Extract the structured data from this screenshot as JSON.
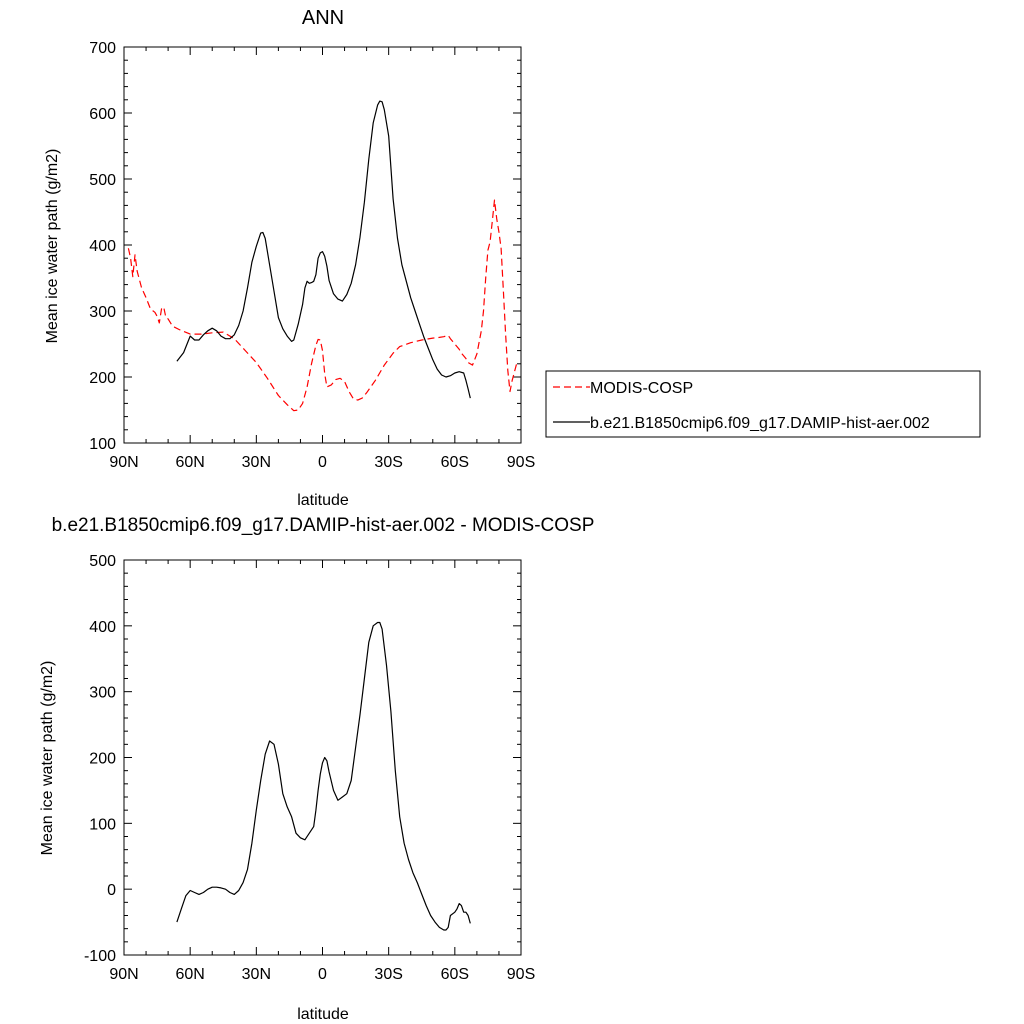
{
  "chart_data": [
    {
      "type": "line",
      "title": "ANN",
      "xlabel": "latitude",
      "ylabel": "Mean ice water path (g/m2)",
      "xlim": [
        90,
        -90
      ],
      "ylim": [
        100,
        700
      ],
      "xticks": [
        {
          "value": 90,
          "label": "90N"
        },
        {
          "value": 60,
          "label": "60N"
        },
        {
          "value": 30,
          "label": "30N"
        },
        {
          "value": 0,
          "label": "0"
        },
        {
          "value": -30,
          "label": "30S"
        },
        {
          "value": -60,
          "label": "60S"
        },
        {
          "value": -90,
          "label": "90S"
        }
      ],
      "yticks": [
        100,
        200,
        300,
        400,
        500,
        600,
        700
      ],
      "legend": "right",
      "series": [
        {
          "name": "MODIS-COSP",
          "color": "#ff0000",
          "dash": "dashed",
          "points": [
            [
              88,
              395
            ],
            [
              87,
              380
            ],
            [
              86,
              352
            ],
            [
              85,
              385
            ],
            [
              84,
              360
            ],
            [
              82,
              335
            ],
            [
              80,
              320
            ],
            [
              78,
              303
            ],
            [
              76,
              298
            ],
            [
              75,
              292
            ],
            [
              74,
              282
            ],
            [
              73,
              303
            ],
            [
              72,
              306
            ],
            [
              71,
              290
            ],
            [
              70,
              288
            ],
            [
              68,
              277
            ],
            [
              65,
              272
            ],
            [
              60,
              265
            ],
            [
              55,
              265
            ],
            [
              50,
              267
            ],
            [
              45,
              268
            ],
            [
              40,
              258
            ],
            [
              35,
              240
            ],
            [
              30,
              222
            ],
            [
              25,
              198
            ],
            [
              20,
              172
            ],
            [
              16,
              158
            ],
            [
              13,
              149
            ],
            [
              11,
              150
            ],
            [
              9,
              160
            ],
            [
              7,
              185
            ],
            [
              5,
              220
            ],
            [
              3,
              248
            ],
            [
              2,
              257
            ],
            [
              1,
              256
            ],
            [
              0,
              240
            ],
            [
              -1,
              205
            ],
            [
              -2,
              185
            ],
            [
              -4,
              188
            ],
            [
              -6,
              196
            ],
            [
              -8,
              198
            ],
            [
              -10,
              193
            ],
            [
              -12,
              178
            ],
            [
              -14,
              167
            ],
            [
              -16,
              165
            ],
            [
              -18,
              168
            ],
            [
              -20,
              176
            ],
            [
              -24,
              195
            ],
            [
              -28,
              218
            ],
            [
              -32,
              236
            ],
            [
              -35,
              246
            ],
            [
              -40,
              252
            ],
            [
              -45,
              256
            ],
            [
              -50,
              259
            ],
            [
              -53,
              260
            ],
            [
              -55,
              261
            ],
            [
              -57,
              263
            ],
            [
              -58,
              258
            ],
            [
              -60,
              250
            ],
            [
              -62,
              242
            ],
            [
              -63,
              236
            ],
            [
              -64,
              232
            ],
            [
              -65,
              228
            ],
            [
              -66,
              222
            ],
            [
              -68,
              218
            ],
            [
              -70,
              235
            ],
            [
              -72,
              270
            ],
            [
              -73,
              300
            ],
            [
              -74,
              350
            ],
            [
              -75,
              392
            ],
            [
              -76,
              405
            ],
            [
              -77,
              436
            ],
            [
              -78,
              468
            ],
            [
              -79,
              440
            ],
            [
              -80,
              420
            ],
            [
              -81,
              395
            ],
            [
              -82,
              330
            ],
            [
              -83,
              265
            ],
            [
              -84,
              210
            ],
            [
              -85,
              178
            ],
            [
              -86,
              195
            ],
            [
              -88,
              220
            ]
          ]
        },
        {
          "name": "b.e21.B1850cmip6.f09_g17.DAMIP-hist-aer.002",
          "color": "#000000",
          "dash": "solid",
          "points": [
            [
              66,
              224
            ],
            [
              63,
              237
            ],
            [
              60,
              262
            ],
            [
              58,
              256
            ],
            [
              56,
              256
            ],
            [
              54,
              264
            ],
            [
              52,
              270
            ],
            [
              50,
              274
            ],
            [
              48,
              270
            ],
            [
              46,
              262
            ],
            [
              44,
              258
            ],
            [
              42,
              258
            ],
            [
              40,
              264
            ],
            [
              38,
              278
            ],
            [
              36,
              300
            ],
            [
              34,
              335
            ],
            [
              32,
              374
            ],
            [
              30,
              398
            ],
            [
              28,
              418
            ],
            [
              27,
              419
            ],
            [
              26,
              410
            ],
            [
              24,
              370
            ],
            [
              22,
              330
            ],
            [
              20,
              290
            ],
            [
              18,
              273
            ],
            [
              16,
              262
            ],
            [
              14,
              254
            ],
            [
              13,
              256
            ],
            [
              11,
              280
            ],
            [
              9,
              310
            ],
            [
              8,
              335
            ],
            [
              7,
              345
            ],
            [
              6,
              342
            ],
            [
              5,
              343
            ],
            [
              4,
              345
            ],
            [
              3,
              355
            ],
            [
              2,
              380
            ],
            [
              1,
              388
            ],
            [
              0,
              390
            ],
            [
              -1,
              383
            ],
            [
              -2,
              368
            ],
            [
              -3,
              346
            ],
            [
              -5,
              326
            ],
            [
              -7,
              318
            ],
            [
              -9,
              315
            ],
            [
              -11,
              325
            ],
            [
              -13,
              342
            ],
            [
              -15,
              370
            ],
            [
              -17,
              412
            ],
            [
              -19,
              465
            ],
            [
              -21,
              530
            ],
            [
              -23,
              585
            ],
            [
              -25,
              612
            ],
            [
              -26,
              618
            ],
            [
              -27,
              617
            ],
            [
              -28,
              605
            ],
            [
              -30,
              565
            ],
            [
              -32,
              470
            ],
            [
              -34,
              410
            ],
            [
              -36,
              370
            ],
            [
              -38,
              345
            ],
            [
              -40,
              320
            ],
            [
              -42,
              300
            ],
            [
              -44,
              280
            ],
            [
              -46,
              260
            ],
            [
              -48,
              243
            ],
            [
              -50,
              226
            ],
            [
              -52,
              212
            ],
            [
              -54,
              203
            ],
            [
              -56,
              200
            ],
            [
              -58,
              202
            ],
            [
              -60,
              206
            ],
            [
              -62,
              208
            ],
            [
              -64,
              206
            ],
            [
              -65,
              195
            ],
            [
              -66,
              182
            ],
            [
              -67,
              168
            ]
          ]
        }
      ]
    },
    {
      "type": "line",
      "title": "b.e21.B1850cmip6.f09_g17.DAMIP-hist-aer.002 - MODIS-COSP",
      "xlabel": "latitude",
      "ylabel": "Mean ice water path (g/m2)",
      "xlim": [
        90,
        -90
      ],
      "ylim": [
        -100,
        500
      ],
      "xticks": [
        {
          "value": 90,
          "label": "90N"
        },
        {
          "value": 60,
          "label": "60N"
        },
        {
          "value": 30,
          "label": "30N"
        },
        {
          "value": 0,
          "label": "0"
        },
        {
          "value": -30,
          "label": "30S"
        },
        {
          "value": -60,
          "label": "60S"
        },
        {
          "value": -90,
          "label": "90S"
        }
      ],
      "yticks": [
        -100,
        0,
        100,
        200,
        300,
        400,
        500
      ],
      "series": [
        {
          "color": "#000000",
          "dash": "solid",
          "points": [
            [
              66,
              -50
            ],
            [
              64,
              -30
            ],
            [
              62,
              -10
            ],
            [
              60,
              -2
            ],
            [
              58,
              -5
            ],
            [
              56,
              -8
            ],
            [
              54,
              -5
            ],
            [
              52,
              0
            ],
            [
              50,
              3
            ],
            [
              48,
              3
            ],
            [
              46,
              2
            ],
            [
              44,
              0
            ],
            [
              42,
              -5
            ],
            [
              40,
              -8
            ],
            [
              38,
              -2
            ],
            [
              36,
              10
            ],
            [
              34,
              30
            ],
            [
              32,
              70
            ],
            [
              30,
              120
            ],
            [
              28,
              165
            ],
            [
              26,
              205
            ],
            [
              24,
              225
            ],
            [
              22,
              220
            ],
            [
              20,
              190
            ],
            [
              18,
              145
            ],
            [
              16,
              125
            ],
            [
              14,
              110
            ],
            [
              12,
              85
            ],
            [
              10,
              78
            ],
            [
              8,
              75
            ],
            [
              6,
              85
            ],
            [
              4,
              95
            ],
            [
              3,
              120
            ],
            [
              2,
              150
            ],
            [
              1,
              175
            ],
            [
              0,
              192
            ],
            [
              -1,
              200
            ],
            [
              -2,
              195
            ],
            [
              -3,
              178
            ],
            [
              -5,
              150
            ],
            [
              -7,
              135
            ],
            [
              -9,
              140
            ],
            [
              -11,
              145
            ],
            [
              -13,
              165
            ],
            [
              -15,
              215
            ],
            [
              -17,
              265
            ],
            [
              -19,
              320
            ],
            [
              -21,
              375
            ],
            [
              -23,
              400
            ],
            [
              -25,
              405
            ],
            [
              -26,
              405
            ],
            [
              -27,
              395
            ],
            [
              -29,
              340
            ],
            [
              -31,
              270
            ],
            [
              -33,
              180
            ],
            [
              -35,
              110
            ],
            [
              -37,
              70
            ],
            [
              -39,
              45
            ],
            [
              -41,
              25
            ],
            [
              -43,
              10
            ],
            [
              -45,
              -8
            ],
            [
              -47,
              -25
            ],
            [
              -49,
              -40
            ],
            [
              -51,
              -50
            ],
            [
              -53,
              -58
            ],
            [
              -55,
              -62
            ],
            [
              -56,
              -62
            ],
            [
              -57,
              -58
            ],
            [
              -58,
              -40
            ],
            [
              -60,
              -35
            ],
            [
              -61,
              -30
            ],
            [
              -62,
              -22
            ],
            [
              -63,
              -25
            ],
            [
              -64,
              -35
            ],
            [
              -65,
              -35
            ],
            [
              -66,
              -40
            ],
            [
              -67,
              -52
            ]
          ]
        }
      ]
    }
  ]
}
